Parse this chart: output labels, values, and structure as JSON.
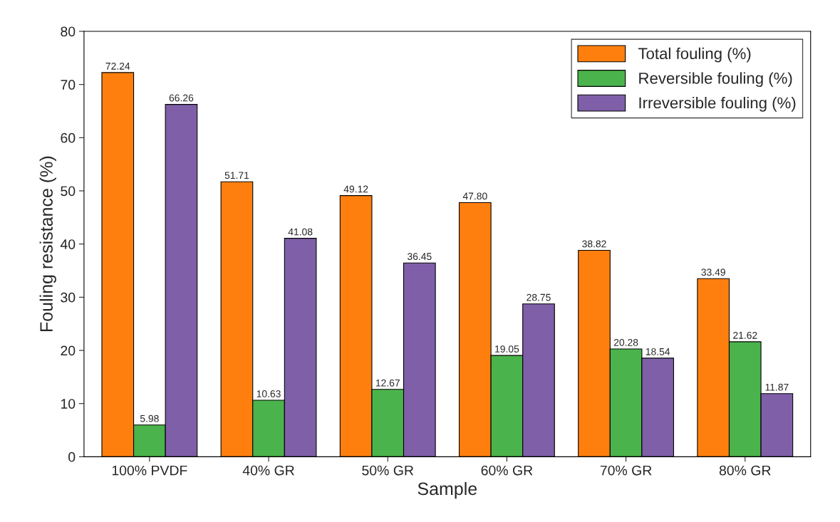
{
  "chart_data": {
    "type": "bar",
    "xlabel": "Sample",
    "ylabel": "Fouling resistance (%)",
    "categories": [
      "100% PVDF",
      "40% GR",
      "50% GR",
      "60% GR",
      "70% GR",
      "80% GR"
    ],
    "series": [
      {
        "name": "Total fouling (%)",
        "color": "#ff7f0e",
        "values": [
          72.24,
          51.71,
          49.12,
          47.8,
          38.82,
          33.49
        ],
        "value_labels": [
          "72.24",
          "51.71",
          "49.12",
          "47.80",
          "38.82",
          "33.49"
        ]
      },
      {
        "name": "Reversible fouling (%)",
        "color": "#4bb34b",
        "values": [
          5.98,
          10.63,
          12.67,
          19.05,
          20.28,
          21.62
        ],
        "value_labels": [
          "5.98",
          "10.63",
          "12.67",
          "19.05",
          "20.28",
          "21.62"
        ]
      },
      {
        "name": "Irreversible fouling (%)",
        "color": "#7f5fa8",
        "values": [
          66.26,
          41.08,
          36.45,
          28.75,
          18.54,
          11.87
        ],
        "value_labels": [
          "66.26",
          "41.08",
          "36.45",
          "28.75",
          "18.54",
          "11.87"
        ]
      }
    ],
    "ylim": [
      0,
      80
    ],
    "yticks": [
      0,
      10,
      20,
      30,
      40,
      50,
      60,
      70,
      80
    ],
    "grid": false,
    "legend": "top right"
  }
}
